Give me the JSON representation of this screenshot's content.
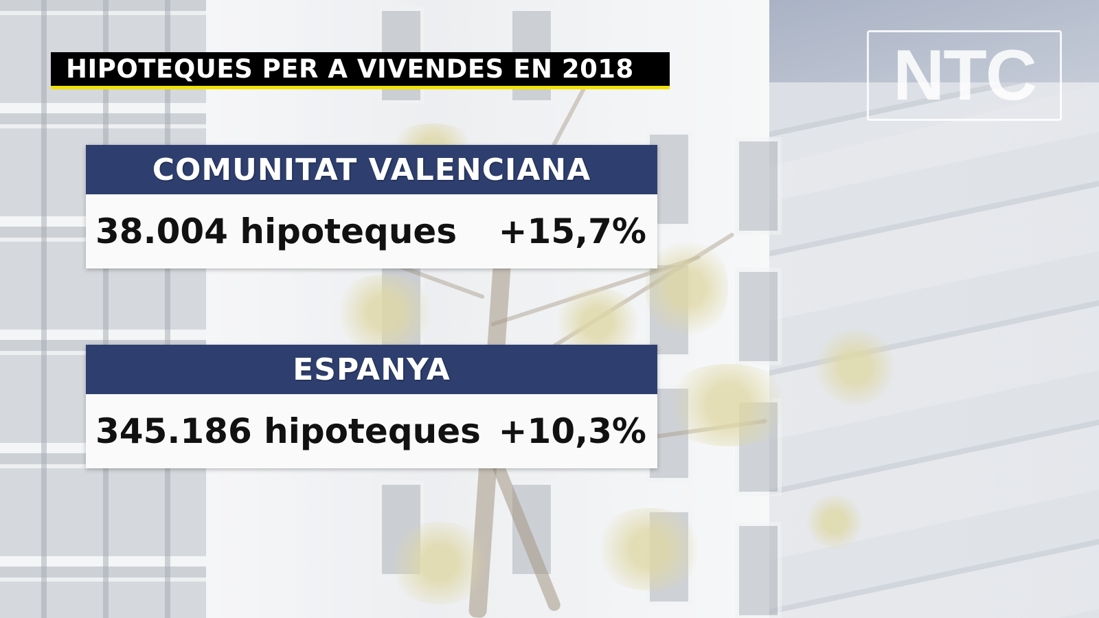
{
  "title": "HIPOTEQUES PER A VIVENDES EN 2018",
  "logo": "NTC",
  "panels": [
    {
      "region": "COMUNITAT VALENCIANA",
      "count_text": "38.004 hipoteques",
      "change": "+15,7%"
    },
    {
      "region": "ESPANYA",
      "count_text": "345.186 hipoteques",
      "change": "+10,3%"
    }
  ],
  "colors": {
    "header_blue": "#2e3f6f",
    "title_underline": "#f2e200",
    "title_bg": "#000000"
  }
}
